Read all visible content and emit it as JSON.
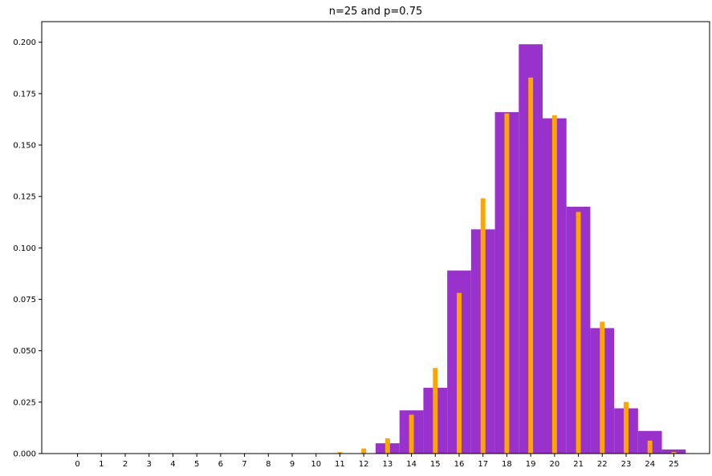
{
  "chart_data": {
    "type": "bar",
    "title": "n=25 and p=0.75",
    "xlabel": "",
    "ylabel": "",
    "xlim": [
      -1.5,
      26.5
    ],
    "ylim": [
      0,
      0.21
    ],
    "xticks": [
      "0",
      "1",
      "2",
      "3",
      "4",
      "5",
      "6",
      "7",
      "8",
      "9",
      "10",
      "11",
      "12",
      "13",
      "14",
      "15",
      "16",
      "17",
      "18",
      "19",
      "20",
      "21",
      "22",
      "23",
      "24",
      "25"
    ],
    "yticks": [
      "0.000",
      "0.025",
      "0.050",
      "0.075",
      "0.100",
      "0.125",
      "0.150",
      "0.175",
      "0.200"
    ],
    "grid": false,
    "series": [
      {
        "name": "",
        "color": "#9932cc",
        "x": [
          0,
          1,
          2,
          3,
          4,
          5,
          6,
          7,
          8,
          9,
          10,
          11,
          12,
          13,
          14,
          15,
          16,
          17,
          18,
          19,
          20,
          21,
          22,
          23,
          24,
          25
        ],
        "values": [
          0,
          0,
          0,
          0,
          0,
          0,
          0,
          0,
          0,
          0,
          0,
          0,
          0,
          0.005,
          0.021,
          0.032,
          0.089,
          0.109,
          0.166,
          0.199,
          0.163,
          0.12,
          0.061,
          0.022,
          0.011,
          0.002
        ]
      },
      {
        "name": "",
        "color": "#ffa500",
        "x": [
          0,
          1,
          2,
          3,
          4,
          5,
          6,
          7,
          8,
          9,
          10,
          11,
          12,
          13,
          14,
          15,
          16,
          17,
          18,
          19,
          20,
          21,
          22,
          23,
          24,
          25
        ],
        "values": [
          0,
          0,
          0,
          0,
          0,
          0,
          0,
          0,
          0,
          0,
          0.0002,
          0.0007,
          0.0025,
          0.0074,
          0.0189,
          0.0416,
          0.0781,
          0.1241,
          0.1654,
          0.1828,
          0.1645,
          0.1175,
          0.0641,
          0.0251,
          0.0063,
          0.0008
        ]
      }
    ]
  }
}
